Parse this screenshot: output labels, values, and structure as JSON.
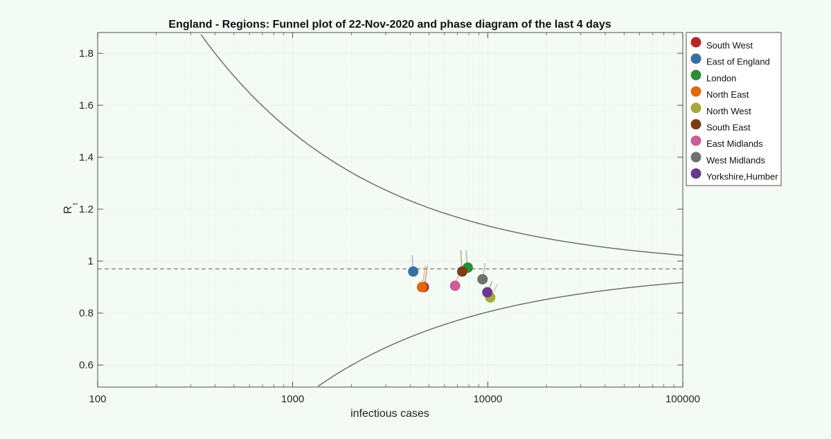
{
  "chart_data": {
    "type": "scatter",
    "title": "England - Regions: Funnel plot of 22-Nov-2020 and phase diagram of the last 4 days",
    "xlabel": "infectious cases",
    "ylabel_main": "R",
    "ylabel_sub": "t",
    "xscale": "log",
    "xlim": [
      100,
      100000
    ],
    "ylim": [
      0.515,
      1.88
    ],
    "xticks": [
      100,
      1000,
      10000,
      100000
    ],
    "xtick_labels": [
      "100",
      "1000",
      "10000",
      "100000"
    ],
    "yticks": [
      0.6,
      0.8,
      1.0,
      1.2,
      1.4,
      1.6,
      1.8
    ],
    "ytick_labels": [
      "0.6",
      "0.8",
      "1",
      "1.2",
      "1.4",
      "1.6",
      "1.8"
    ],
    "grid": true,
    "legend_position": "top-right outside",
    "reference_line": {
      "y": 0.97,
      "style": "dashed",
      "color": "#6e6e6e"
    },
    "funnel": {
      "center": 0.97,
      "k": 16.6,
      "color": "#6e6e6e"
    },
    "series": [
      {
        "name": "South West",
        "color": "#b22a22",
        "x": 4700,
        "y": 0.9,
        "trail": [
          [
            4700,
            0.9
          ],
          [
            4800,
            0.93
          ],
          [
            4900,
            0.98
          ]
        ]
      },
      {
        "name": "East of England",
        "color": "#3a6ea0",
        "x": 4150,
        "y": 0.96,
        "trail": [
          [
            4150,
            0.96
          ],
          [
            4120,
            0.99
          ],
          [
            4100,
            1.02
          ]
        ]
      },
      {
        "name": "London",
        "color": "#2e8b3a",
        "x": 7900,
        "y": 0.975,
        "trail": [
          [
            7900,
            0.975
          ],
          [
            7820,
            1.0
          ],
          [
            7750,
            1.04
          ]
        ]
      },
      {
        "name": "North East",
        "color": "#dd6a10",
        "x": 4600,
        "y": 0.9,
        "trail": [
          [
            4600,
            0.9
          ],
          [
            4700,
            0.94
          ],
          [
            4780,
            0.98
          ]
        ]
      },
      {
        "name": "North West",
        "color": "#a8a840",
        "x": 10300,
        "y": 0.86,
        "trail": [
          [
            10300,
            0.86
          ],
          [
            10700,
            0.88
          ],
          [
            11200,
            0.91
          ]
        ]
      },
      {
        "name": "South East",
        "color": "#7a3e16",
        "x": 7400,
        "y": 0.96,
        "trail": [
          [
            7400,
            0.96
          ],
          [
            7320,
            1.0
          ],
          [
            7280,
            1.04
          ]
        ]
      },
      {
        "name": "East Midlands",
        "color": "#c8609a",
        "x": 6800,
        "y": 0.905,
        "trail": [
          [
            6800,
            0.905
          ],
          [
            6950,
            0.93
          ],
          [
            7200,
            0.96
          ]
        ]
      },
      {
        "name": "West Midlands",
        "color": "#707070",
        "x": 9400,
        "y": 0.93,
        "trail": [
          [
            9400,
            0.93
          ],
          [
            9550,
            0.96
          ],
          [
            9700,
            0.99
          ]
        ]
      },
      {
        "name": "Yorkshire,Humber",
        "color": "#6a3a8a",
        "x": 9950,
        "y": 0.88,
        "trail": [
          [
            9950,
            0.88
          ],
          [
            10250,
            0.9
          ],
          [
            10500,
            0.92
          ]
        ]
      }
    ]
  }
}
